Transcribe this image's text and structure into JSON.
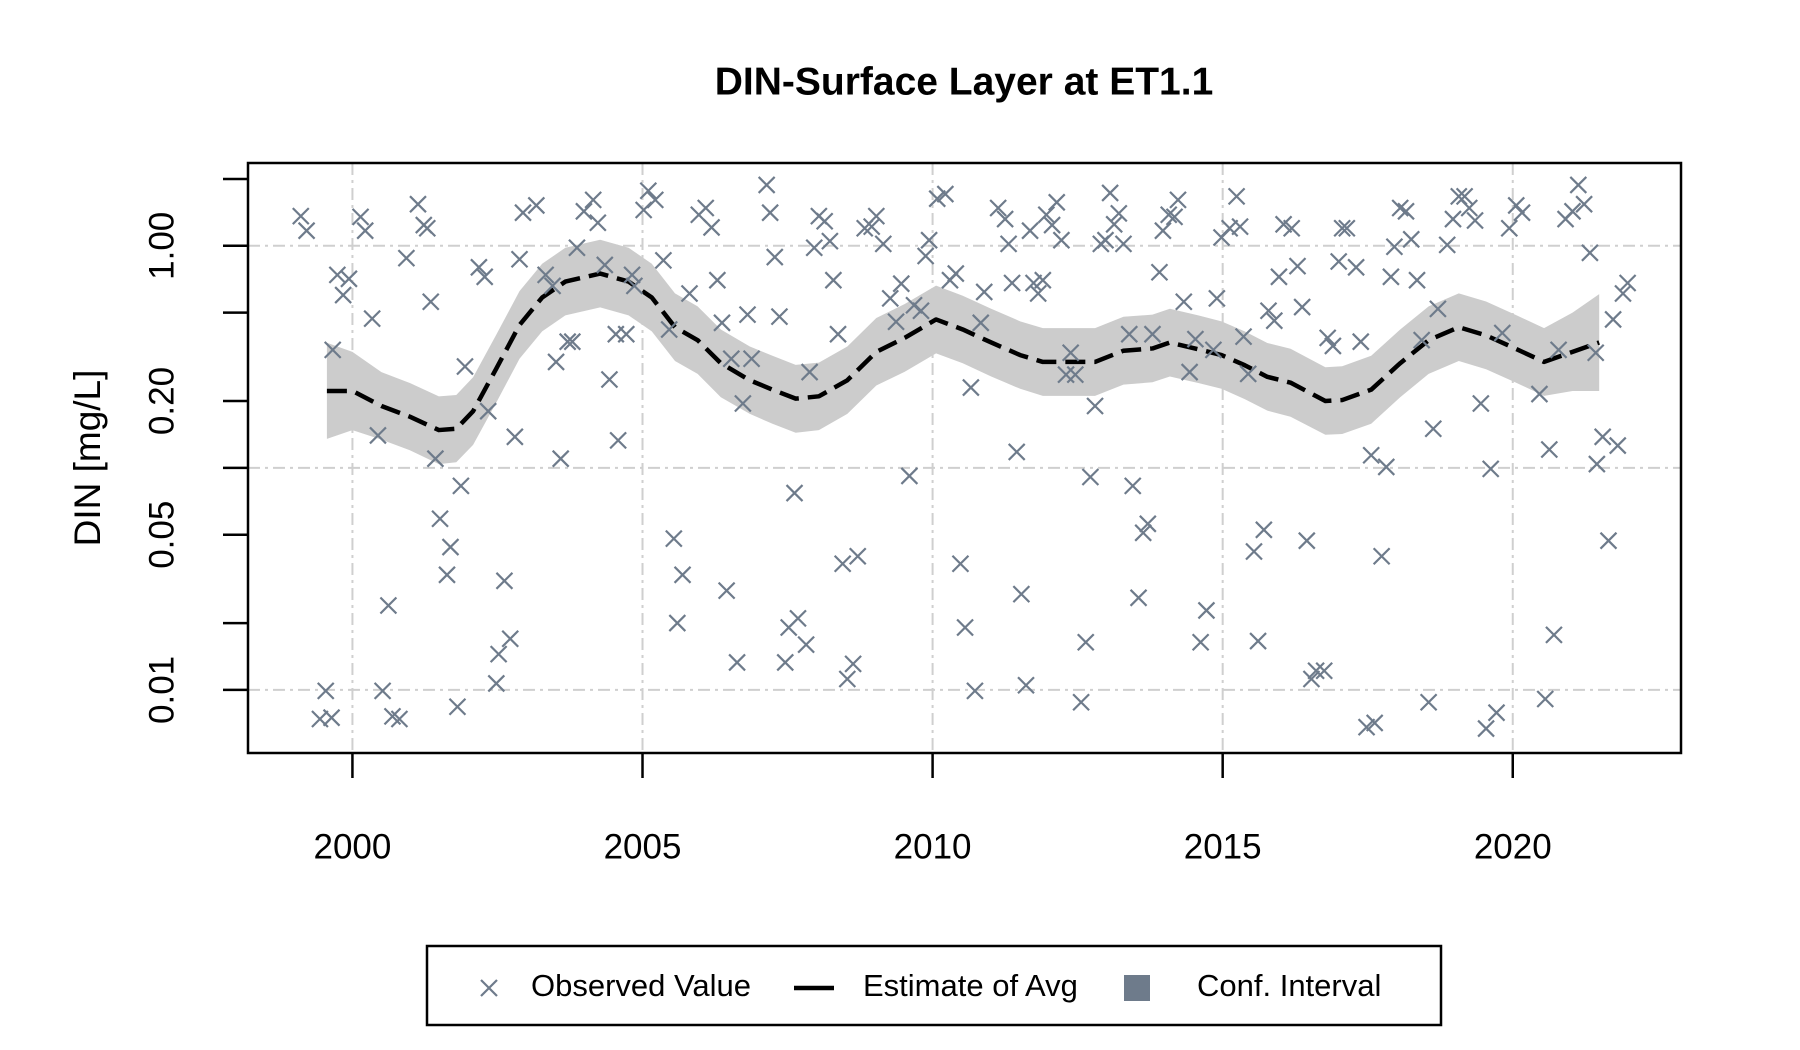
{
  "chart_data": {
    "type": "scatter",
    "title": "DIN-Surface Layer at ET1.1",
    "ylabel": "DIN [mg/L]",
    "xlim": [
      1998.2,
      2022.9
    ],
    "xticks": [
      2000,
      2005,
      2010,
      2015,
      2020
    ],
    "xgrid": true,
    "ylim": [
      0.0052,
      2.36
    ],
    "ylog": true,
    "yticks": [
      0.01,
      0.05,
      {
        "value": 0.2,
        "label": "0.20"
      },
      {
        "value": 1,
        "label": "1.00"
      }
    ],
    "y_minor_ticks": [
      0.02,
      0.1,
      0.5,
      2
    ],
    "ygrid": [
      0.01,
      0.1,
      1
    ],
    "legend": "bottom",
    "series": [
      {
        "name": "Observed Value",
        "type": "scatter",
        "color": "#6e7b8b",
        "x": [
          1999.11,
          1999.21,
          1999.54,
          1999.44,
          1999.64,
          1999.66,
          1999.74,
          1999.84,
          1999.94,
          2000.14,
          2000.22,
          2000.34,
          2000.44,
          2000.62,
          2000.52,
          2000.69,
          2000.81,
          2000.93,
          2001.13,
          2001.23,
          2001.29,
          2001.35,
          2001.43,
          2001.51,
          2001.63,
          2001.69,
          2001.81,
          2001.87,
          2001.94,
          2002.18,
          2002.28,
          2002.34,
          2002.48,
          2002.52,
          2002.62,
          2002.72,
          2002.8,
          2002.88,
          2002.94,
          2003.17,
          2003.33,
          2003.45,
          2003.51,
          2003.59,
          2003.71,
          2003.79,
          2003.87,
          2003.99,
          2004.15,
          2004.23,
          2004.35,
          2004.43,
          2004.54,
          2004.58,
          2004.72,
          2004.82,
          2004.86,
          2005.02,
          2005.1,
          2005.22,
          2005.36,
          2005.46,
          2005.54,
          2005.6,
          2005.69,
          2005.81,
          2005.97,
          2006.09,
          2006.19,
          2006.29,
          2006.37,
          2006.45,
          2006.53,
          2006.63,
          2006.73,
          2006.81,
          2006.88,
          2007.14,
          2007.2,
          2007.28,
          2007.36,
          2007.46,
          2007.52,
          2007.62,
          2007.68,
          2007.82,
          2007.88,
          2007.96,
          2008.04,
          2008.14,
          2008.23,
          2008.29,
          2008.37,
          2008.45,
          2008.53,
          2008.63,
          2008.71,
          2008.83,
          2008.95,
          2009.03,
          2009.15,
          2009.27,
          2009.37,
          2009.46,
          2009.6,
          2009.68,
          2009.8,
          2009.88,
          2009.94,
          2010.08,
          2010.22,
          2010.3,
          2010.4,
          2010.48,
          2010.56,
          2010.66,
          2010.73,
          2010.83,
          2010.89,
          2011.13,
          2011.25,
          2011.31,
          2011.37,
          2011.45,
          2011.53,
          2011.61,
          2011.68,
          2011.74,
          2011.82,
          2011.9,
          2011.96,
          2012.06,
          2012.14,
          2012.22,
          2012.3,
          2012.38,
          2012.46,
          2012.56,
          2012.64,
          2012.72,
          2012.8,
          2012.9,
          2012.98,
          2013.06,
          2013.13,
          2013.21,
          2013.29,
          2013.39,
          2013.45,
          2013.55,
          2013.63,
          2013.71,
          2013.79,
          2013.91,
          2013.97,
          2014.07,
          2014.17,
          2014.23,
          2014.33,
          2014.43,
          2014.53,
          2014.62,
          2014.72,
          2014.84,
          2014.9,
          2014.98,
          2015.12,
          2015.24,
          2015.3,
          2015.36,
          2015.44,
          2015.54,
          2015.61,
          2015.71,
          2015.79,
          2015.89,
          2015.97,
          2016.05,
          2016.19,
          2016.29,
          2016.37,
          2016.45,
          2016.53,
          2016.61,
          2016.75,
          2016.81,
          2016.9,
          2017,
          2017.06,
          2017.14,
          2017.3,
          2017.38,
          2017.48,
          2017.56,
          2017.62,
          2017.74,
          2017.82,
          2017.9,
          2017.96,
          2018.06,
          2018.16,
          2018.25,
          2018.35,
          2018.43,
          2018.55,
          2018.63,
          2018.71,
          2018.87,
          2018.97,
          2019.07,
          2019.17,
          2019.25,
          2019.35,
          2019.45,
          2019.54,
          2019.62,
          2019.72,
          2019.82,
          2019.94,
          2020.06,
          2020.16,
          2020.46,
          2020.56,
          2020.63,
          2020.71,
          2020.79,
          2020.91,
          2021.03,
          2021.13,
          2021.23,
          2021.33,
          2021.43,
          2021.45,
          2021.55,
          2021.65,
          2021.73,
          2021.81,
          2021.9,
          2021.98
        ],
        "values": [
          1.36,
          1.17,
          0.0099,
          0.0074,
          0.0075,
          0.34,
          0.74,
          0.6,
          0.71,
          1.35,
          1.17,
          0.47,
          0.14,
          0.024,
          0.0099,
          0.0076,
          0.0074,
          0.88,
          1.54,
          1.24,
          1.2,
          0.56,
          0.11,
          0.059,
          0.033,
          0.044,
          0.0084,
          0.083,
          0.286,
          0.8,
          0.725,
          0.18,
          0.0107,
          0.0145,
          0.031,
          0.017,
          0.138,
          0.87,
          1.41,
          1.52,
          0.74,
          0.66,
          0.3,
          0.11,
          0.37,
          0.37,
          0.98,
          1.43,
          1.61,
          1.27,
          0.82,
          0.25,
          0.4,
          0.133,
          0.4,
          0.74,
          0.66,
          1.45,
          1.77,
          1.61,
          0.86,
          0.42,
          0.048,
          0.02,
          0.033,
          0.61,
          1.38,
          1.48,
          1.21,
          0.7,
          0.45,
          0.028,
          0.31,
          0.0133,
          0.195,
          0.49,
          0.31,
          1.88,
          1.41,
          0.89,
          0.48,
          0.0133,
          0.0191,
          0.077,
          0.021,
          0.016,
          0.27,
          0.98,
          1.36,
          1.29,
          1.05,
          0.7,
          0.4,
          0.037,
          0.0112,
          0.0131,
          0.04,
          1.2,
          1.22,
          1.36,
          1.02,
          0.58,
          0.455,
          0.675,
          0.092,
          0.54,
          0.51,
          0.9,
          1.06,
          1.63,
          1.71,
          0.7,
          0.75,
          0.037,
          0.0191,
          0.23,
          0.0099,
          0.45,
          0.62,
          1.48,
          1.32,
          1.02,
          0.68,
          0.118,
          0.027,
          0.0105,
          1.17,
          0.68,
          0.61,
          0.7,
          1.38,
          1.24,
          1.57,
          1.06,
          0.263,
          0.33,
          0.263,
          0.0088,
          0.0164,
          0.091,
          0.19,
          1.02,
          1.06,
          1.73,
          1.25,
          1.4,
          1.02,
          0.4,
          0.083,
          0.026,
          0.051,
          0.056,
          0.4,
          0.76,
          1.17,
          1.38,
          1.35,
          1.61,
          0.56,
          0.27,
          0.38,
          0.0164,
          0.0228,
          0.34,
          0.58,
          1.09,
          1.2,
          1.67,
          1.22,
          0.39,
          0.265,
          0.042,
          0.0166,
          0.0526,
          0.51,
          0.46,
          0.725,
          1.25,
          1.2,
          0.81,
          0.53,
          0.047,
          0.0112,
          0.0122,
          0.0122,
          0.385,
          0.354,
          0.85,
          1.2,
          1.2,
          0.8,
          0.37,
          0.0068,
          0.114,
          0.0071,
          0.04,
          0.101,
          0.725,
          0.99,
          1.48,
          1.43,
          1.07,
          0.7,
          0.376,
          0.0088,
          0.15,
          0.52,
          1.01,
          1.32,
          1.67,
          1.67,
          1.48,
          1.3,
          0.195,
          0.0067,
          0.099,
          0.0079,
          0.405,
          1.2,
          1.52,
          1.41,
          0.215,
          0.0091,
          0.121,
          0.0177,
          0.34,
          1.32,
          1.43,
          1.88,
          1.54,
          0.93,
          0.33,
          0.104,
          0.138,
          0.047,
          0.466,
          0.126,
          0.61,
          0.68
        ]
      },
      {
        "name": "Estimate of Avg",
        "type": "line",
        "color": "#000000",
        "dashed": true,
        "x": [
          1999.56,
          2000,
          2000.5,
          2000.99,
          2001.49,
          2001.79,
          2002.08,
          2002.48,
          2002.88,
          2003.27,
          2003.67,
          2004.27,
          2004.76,
          2005.16,
          2005.56,
          2005.95,
          2006.35,
          2006.85,
          2007.24,
          2007.64,
          2008.04,
          2008.53,
          2009.03,
          2009.52,
          2010.06,
          2010.52,
          2011.01,
          2011.51,
          2011.9,
          2012.4,
          2012.8,
          2013.29,
          2013.79,
          2014.09,
          2014.58,
          2014.98,
          2015.38,
          2015.77,
          2016.17,
          2016.77,
          2017.06,
          2017.56,
          2018.06,
          2018.55,
          2019.07,
          2019.54,
          2020.04,
          2020.54,
          2021.03,
          2021.49
        ],
        "values": [
          0.222,
          0.222,
          0.19,
          0.17,
          0.148,
          0.15,
          0.18,
          0.28,
          0.44,
          0.585,
          0.69,
          0.75,
          0.69,
          0.585,
          0.43,
          0.376,
          0.296,
          0.248,
          0.225,
          0.205,
          0.21,
          0.248,
          0.333,
          0.385,
          0.466,
          0.42,
          0.367,
          0.322,
          0.3,
          0.3,
          0.3,
          0.337,
          0.345,
          0.367,
          0.342,
          0.322,
          0.29,
          0.257,
          0.242,
          0.2,
          0.202,
          0.225,
          0.296,
          0.376,
          0.43,
          0.395,
          0.345,
          0.3,
          0.333,
          0.367
        ]
      },
      {
        "name": "Conf. Interval",
        "type": "band",
        "color": "#cccccc",
        "legend_color": "#6e7b8b",
        "x": [
          1999.56,
          2000,
          2000.5,
          2000.99,
          2001.49,
          2001.79,
          2002.08,
          2002.48,
          2002.88,
          2003.27,
          2003.67,
          2004.27,
          2004.76,
          2005.16,
          2005.56,
          2005.95,
          2006.35,
          2006.85,
          2007.24,
          2007.64,
          2008.04,
          2008.53,
          2009.03,
          2009.52,
          2010.06,
          2010.52,
          2011.01,
          2011.51,
          2011.9,
          2012.4,
          2012.8,
          2013.29,
          2013.79,
          2014.09,
          2014.58,
          2014.98,
          2015.38,
          2015.77,
          2016.17,
          2016.77,
          2017.06,
          2017.56,
          2018.06,
          2018.55,
          2019.07,
          2019.54,
          2020.04,
          2020.54,
          2021.03,
          2021.49
        ],
        "lower": [
          0.135,
          0.148,
          0.134,
          0.12,
          0.104,
          0.106,
          0.127,
          0.197,
          0.31,
          0.412,
          0.486,
          0.528,
          0.486,
          0.412,
          0.303,
          0.265,
          0.208,
          0.175,
          0.158,
          0.144,
          0.148,
          0.175,
          0.235,
          0.271,
          0.328,
          0.296,
          0.258,
          0.227,
          0.211,
          0.211,
          0.211,
          0.237,
          0.243,
          0.258,
          0.241,
          0.227,
          0.204,
          0.181,
          0.17,
          0.141,
          0.142,
          0.158,
          0.208,
          0.265,
          0.303,
          0.278,
          0.243,
          0.211,
          0.222,
          0.222
        ],
        "upper": [
          0.366,
          0.333,
          0.27,
          0.241,
          0.21,
          0.213,
          0.256,
          0.398,
          0.625,
          0.83,
          0.98,
          1.065,
          0.98,
          0.83,
          0.611,
          0.534,
          0.42,
          0.352,
          0.32,
          0.291,
          0.298,
          0.352,
          0.473,
          0.547,
          0.662,
          0.596,
          0.521,
          0.457,
          0.426,
          0.426,
          0.426,
          0.479,
          0.49,
          0.521,
          0.486,
          0.457,
          0.412,
          0.365,
          0.344,
          0.284,
          0.287,
          0.32,
          0.42,
          0.534,
          0.611,
          0.561,
          0.49,
          0.426,
          0.5,
          0.606
        ]
      }
    ]
  }
}
